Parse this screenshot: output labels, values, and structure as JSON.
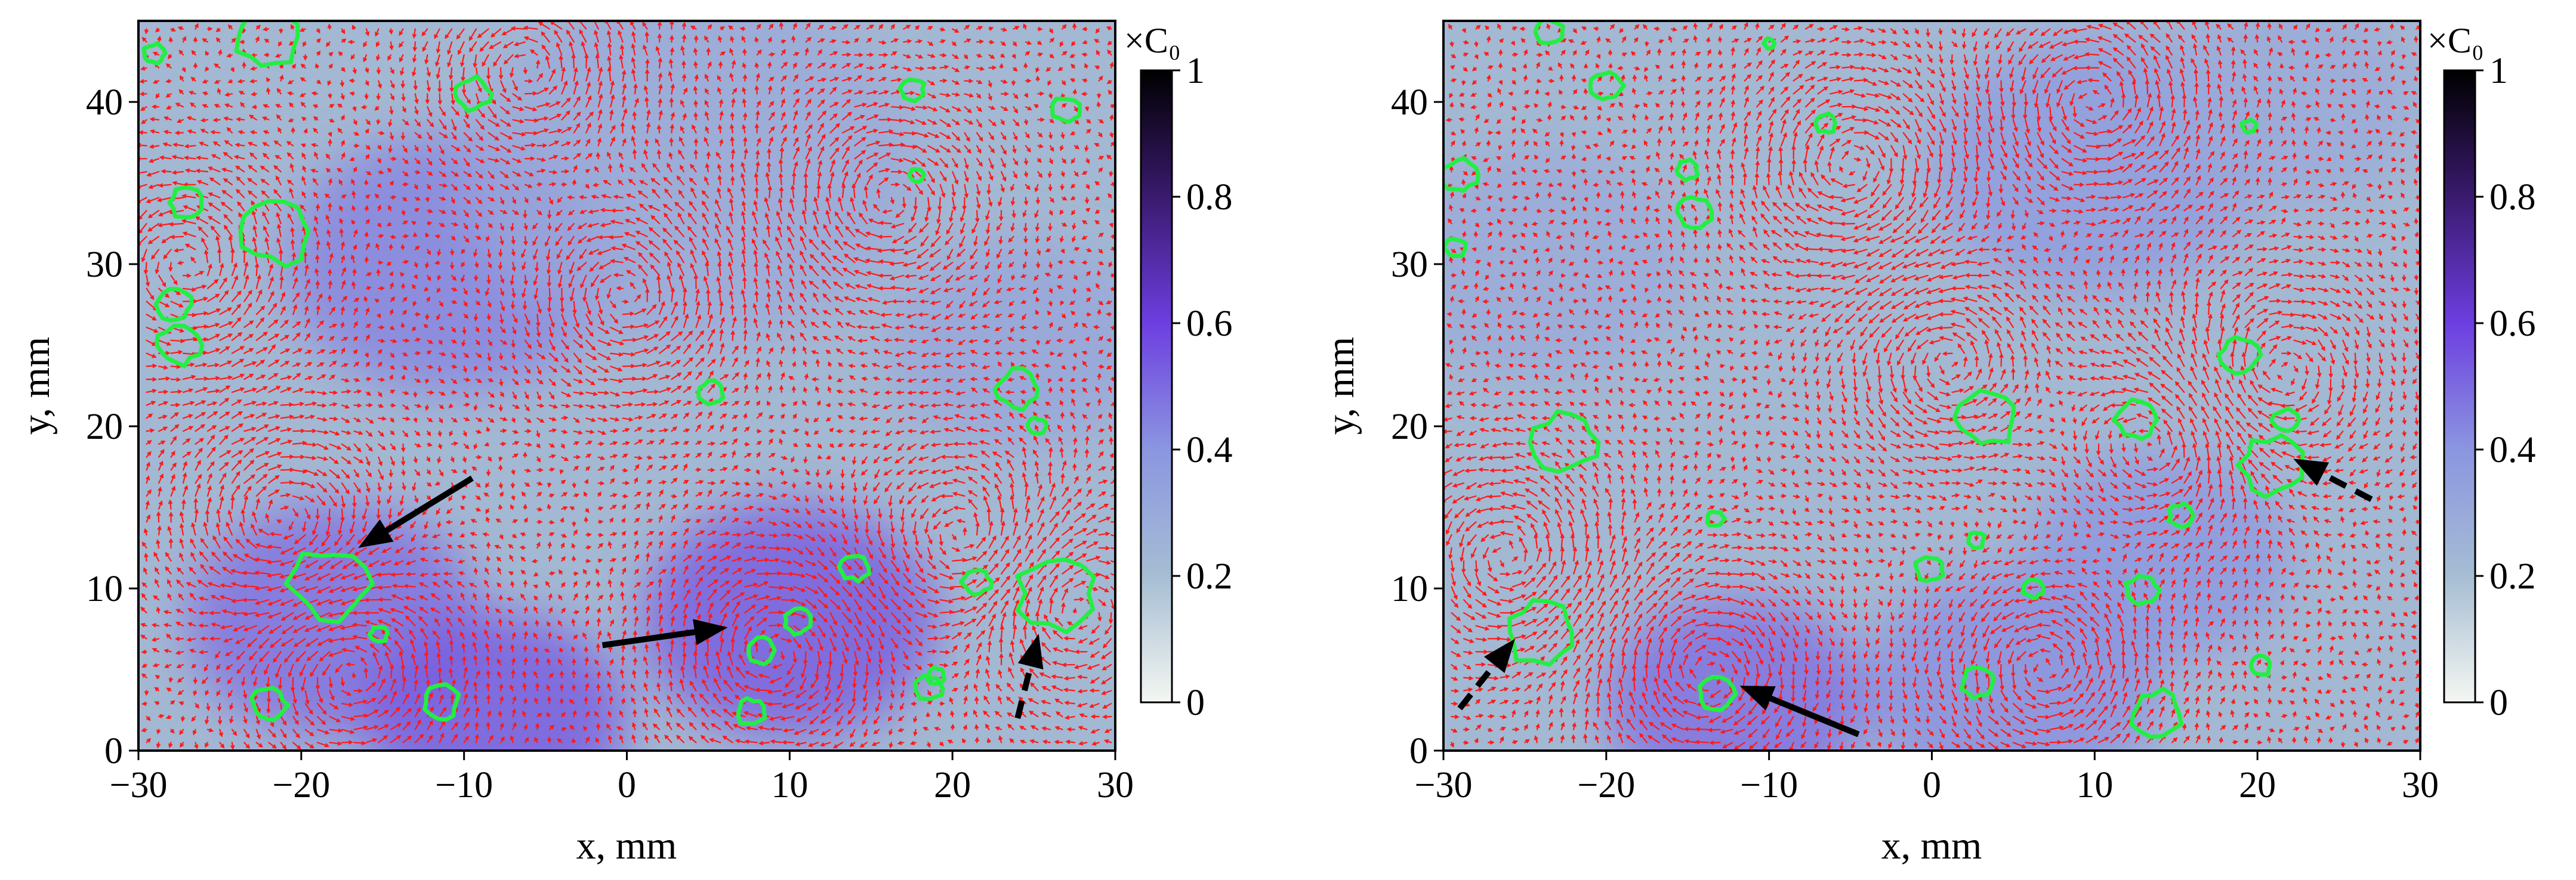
{
  "chart_data": [
    {
      "type": "heatmap",
      "overlays": [
        "vector-field",
        "contour",
        "arrows"
      ],
      "xlabel": "x, mm",
      "ylabel": "y, mm",
      "xlim": [
        -30,
        30
      ],
      "ylim": [
        0,
        45
      ],
      "xticks": [
        "−30",
        "−20",
        "−10",
        "0",
        "10",
        "20",
        "30"
      ],
      "xtick_values": [
        -30,
        -20,
        -10,
        0,
        10,
        20,
        30
      ],
      "yticks": [
        "0",
        "10",
        "20",
        "30",
        "40"
      ],
      "ytick_values": [
        0,
        10,
        20,
        30,
        40
      ],
      "colorbar": {
        "title": "×C₀",
        "range": [
          0,
          1
        ],
        "ticks": [
          "0",
          "0.2",
          "0.4",
          "0.6",
          "0.8",
          "1"
        ],
        "tick_values": [
          0,
          0.2,
          0.4,
          0.6,
          0.8,
          1.0
        ]
      },
      "colors": {
        "vectors": "#ff1a1a",
        "contours": "#22ee44",
        "arrows": "#000000"
      },
      "concentration_blobs": [
        {
          "x": -11,
          "y": 30,
          "r": 10,
          "value": 0.45
        },
        {
          "x": -18,
          "y": 8,
          "r": 9,
          "value": 0.5
        },
        {
          "x": -8,
          "y": 2,
          "r": 8,
          "value": 0.55
        },
        {
          "x": 10,
          "y": 8,
          "r": 9,
          "value": 0.55
        },
        {
          "x": 4,
          "y": 36,
          "r": 14,
          "value": 0.3
        },
        {
          "x": 24,
          "y": 25,
          "r": 8,
          "value": 0.32
        }
      ],
      "contours": [
        {
          "x": -22,
          "y": 44,
          "r": 1.8
        },
        {
          "x": -29,
          "y": 43,
          "r": 0.6
        },
        {
          "x": -9.5,
          "y": 40.5,
          "r": 1.0
        },
        {
          "x": 17.5,
          "y": 40.8,
          "r": 0.7
        },
        {
          "x": 27,
          "y": 39.5,
          "r": 0.8
        },
        {
          "x": 17.8,
          "y": 35.5,
          "r": 0.4
        },
        {
          "x": -27,
          "y": 33.8,
          "r": 1.0
        },
        {
          "x": -21.5,
          "y": 32,
          "r": 2.0
        },
        {
          "x": -27.8,
          "y": 27.5,
          "r": 1.0
        },
        {
          "x": -27.5,
          "y": 25,
          "r": 1.2
        },
        {
          "x": 5.2,
          "y": 22.1,
          "r": 0.7
        },
        {
          "x": 24,
          "y": 22.3,
          "r": 1.2
        },
        {
          "x": 25.2,
          "y": 20,
          "r": 0.5
        },
        {
          "x": -18.3,
          "y": 10.3,
          "r": 2.2
        },
        {
          "x": -15.2,
          "y": 7.2,
          "r": 0.5
        },
        {
          "x": 14,
          "y": 11.3,
          "r": 0.8
        },
        {
          "x": 21.5,
          "y": 10.4,
          "r": 0.8
        },
        {
          "x": 26.4,
          "y": 9.7,
          "r": 2.2
        },
        {
          "x": 10.5,
          "y": 8,
          "r": 0.8
        },
        {
          "x": 8.2,
          "y": 6.2,
          "r": 0.8
        },
        {
          "x": -22,
          "y": 2.8,
          "r": 1.0
        },
        {
          "x": -11.4,
          "y": 3,
          "r": 1.0
        },
        {
          "x": 7.6,
          "y": 2.4,
          "r": 0.8
        },
        {
          "x": 18.5,
          "y": 3.8,
          "r": 0.8
        },
        {
          "x": 19,
          "y": 4.6,
          "r": 0.5
        }
      ],
      "vortices": [
        {
          "x": -27,
          "y": 30,
          "s": 1
        },
        {
          "x": -21,
          "y": 14,
          "s": -1
        },
        {
          "x": -17,
          "y": 5,
          "s": 1
        },
        {
          "x": 9,
          "y": 6,
          "s": -1
        },
        {
          "x": 21,
          "y": 13,
          "s": 1
        },
        {
          "x": 27,
          "y": 9,
          "s": -1
        },
        {
          "x": 0,
          "y": 28,
          "s": 1
        },
        {
          "x": 16,
          "y": 34,
          "s": -1
        },
        {
          "x": -6,
          "y": 42,
          "s": 1
        }
      ],
      "annotation_arrows": [
        {
          "style": "solid",
          "from": [
            -9.5,
            16.8
          ],
          "to": [
            -16.5,
            12.5
          ]
        },
        {
          "style": "solid",
          "from": [
            -1.5,
            6.5
          ],
          "to": [
            6.2,
            7.6
          ]
        },
        {
          "style": "dashed",
          "from": [
            24,
            2
          ],
          "to": [
            25.3,
            7.2
          ]
        }
      ]
    },
    {
      "type": "heatmap",
      "overlays": [
        "vector-field",
        "contour",
        "arrows"
      ],
      "xlabel": "x, mm",
      "ylabel": "y, mm",
      "xlim": [
        -30,
        30
      ],
      "ylim": [
        0,
        45
      ],
      "xticks": [
        "−30",
        "−20",
        "−10",
        "0",
        "10",
        "20",
        "30"
      ],
      "xtick_values": [
        -30,
        -20,
        -10,
        0,
        10,
        20,
        30
      ],
      "yticks": [
        "0",
        "10",
        "20",
        "30",
        "40"
      ],
      "ytick_values": [
        0,
        10,
        20,
        30,
        40
      ],
      "colorbar": {
        "title": "×C₀",
        "range": [
          0,
          1
        ],
        "ticks": [
          "0",
          "0.2",
          "0.4",
          "0.6",
          "0.8",
          "1"
        ],
        "tick_values": [
          0,
          0.2,
          0.4,
          0.6,
          0.8,
          1.0
        ]
      },
      "colors": {
        "vectors": "#ff1a1a",
        "contours": "#22ee44",
        "arrows": "#000000"
      },
      "concentration_blobs": [
        {
          "x": -12,
          "y": 3,
          "r": 8,
          "value": 0.5
        },
        {
          "x": 5,
          "y": 4,
          "r": 9,
          "value": 0.42
        },
        {
          "x": 14,
          "y": 12,
          "r": 8,
          "value": 0.4
        },
        {
          "x": 10,
          "y": 36,
          "r": 10,
          "value": 0.38
        },
        {
          "x": -24,
          "y": 30,
          "r": 9,
          "value": 0.3
        },
        {
          "x": 22,
          "y": 40,
          "r": 8,
          "value": 0.3
        }
      ],
      "contours": [
        {
          "x": -23.5,
          "y": 44.3,
          "r": 0.8
        },
        {
          "x": -10,
          "y": 43.6,
          "r": 0.3
        },
        {
          "x": -20,
          "y": 41,
          "r": 0.9
        },
        {
          "x": -6.5,
          "y": 38.7,
          "r": 0.6
        },
        {
          "x": 19.5,
          "y": 38.5,
          "r": 0.4
        },
        {
          "x": -29,
          "y": 35.5,
          "r": 1.0
        },
        {
          "x": -15,
          "y": 35.8,
          "r": 0.6
        },
        {
          "x": -14.5,
          "y": 33.2,
          "r": 1.0
        },
        {
          "x": -29.3,
          "y": 31,
          "r": 0.6
        },
        {
          "x": 18.9,
          "y": 24.4,
          "r": 1.1
        },
        {
          "x": 3.4,
          "y": 20.5,
          "r": 1.7
        },
        {
          "x": 12.6,
          "y": 20.4,
          "r": 1.2
        },
        {
          "x": -22.5,
          "y": 19,
          "r": 1.8
        },
        {
          "x": 21.7,
          "y": 20.4,
          "r": 0.7
        },
        {
          "x": 21,
          "y": 17.6,
          "r": 1.8
        },
        {
          "x": 15.3,
          "y": 14.5,
          "r": 0.7
        },
        {
          "x": -13.3,
          "y": 14.3,
          "r": 0.5
        },
        {
          "x": 2.7,
          "y": 13,
          "r": 0.5
        },
        {
          "x": -0.2,
          "y": 11.2,
          "r": 0.8
        },
        {
          "x": 6.2,
          "y": 10,
          "r": 0.6
        },
        {
          "x": 12.9,
          "y": 9.9,
          "r": 0.9
        },
        {
          "x": -24,
          "y": 7.3,
          "r": 2.0
        },
        {
          "x": 2.8,
          "y": 4.2,
          "r": 0.9
        },
        {
          "x": -13.2,
          "y": 3.5,
          "r": 1.0
        },
        {
          "x": 20.2,
          "y": 5.2,
          "r": 0.6
        },
        {
          "x": 13.8,
          "y": 2.3,
          "r": 1.4
        }
      ],
      "vortices": [
        {
          "x": -26,
          "y": 12,
          "s": 1
        },
        {
          "x": -14,
          "y": 5,
          "s": -1
        },
        {
          "x": 14,
          "y": 19,
          "s": 1
        },
        {
          "x": 21,
          "y": 23,
          "s": -1
        },
        {
          "x": 1,
          "y": 24,
          "s": 1
        },
        {
          "x": -5,
          "y": 36,
          "s": -1
        },
        {
          "x": 10,
          "y": 40,
          "s": 1
        },
        {
          "x": 7,
          "y": 5,
          "s": 1
        }
      ],
      "annotation_arrows": [
        {
          "style": "solid",
          "from": [
            -4.5,
            1.0
          ],
          "to": [
            -11.8,
            4.0
          ]
        },
        {
          "style": "dashed",
          "from": [
            -29,
            2.6
          ],
          "to": [
            -25.6,
            6.9
          ]
        },
        {
          "style": "dashed",
          "from": [
            27,
            15.5
          ],
          "to": [
            22.2,
            18.0
          ]
        }
      ]
    }
  ]
}
